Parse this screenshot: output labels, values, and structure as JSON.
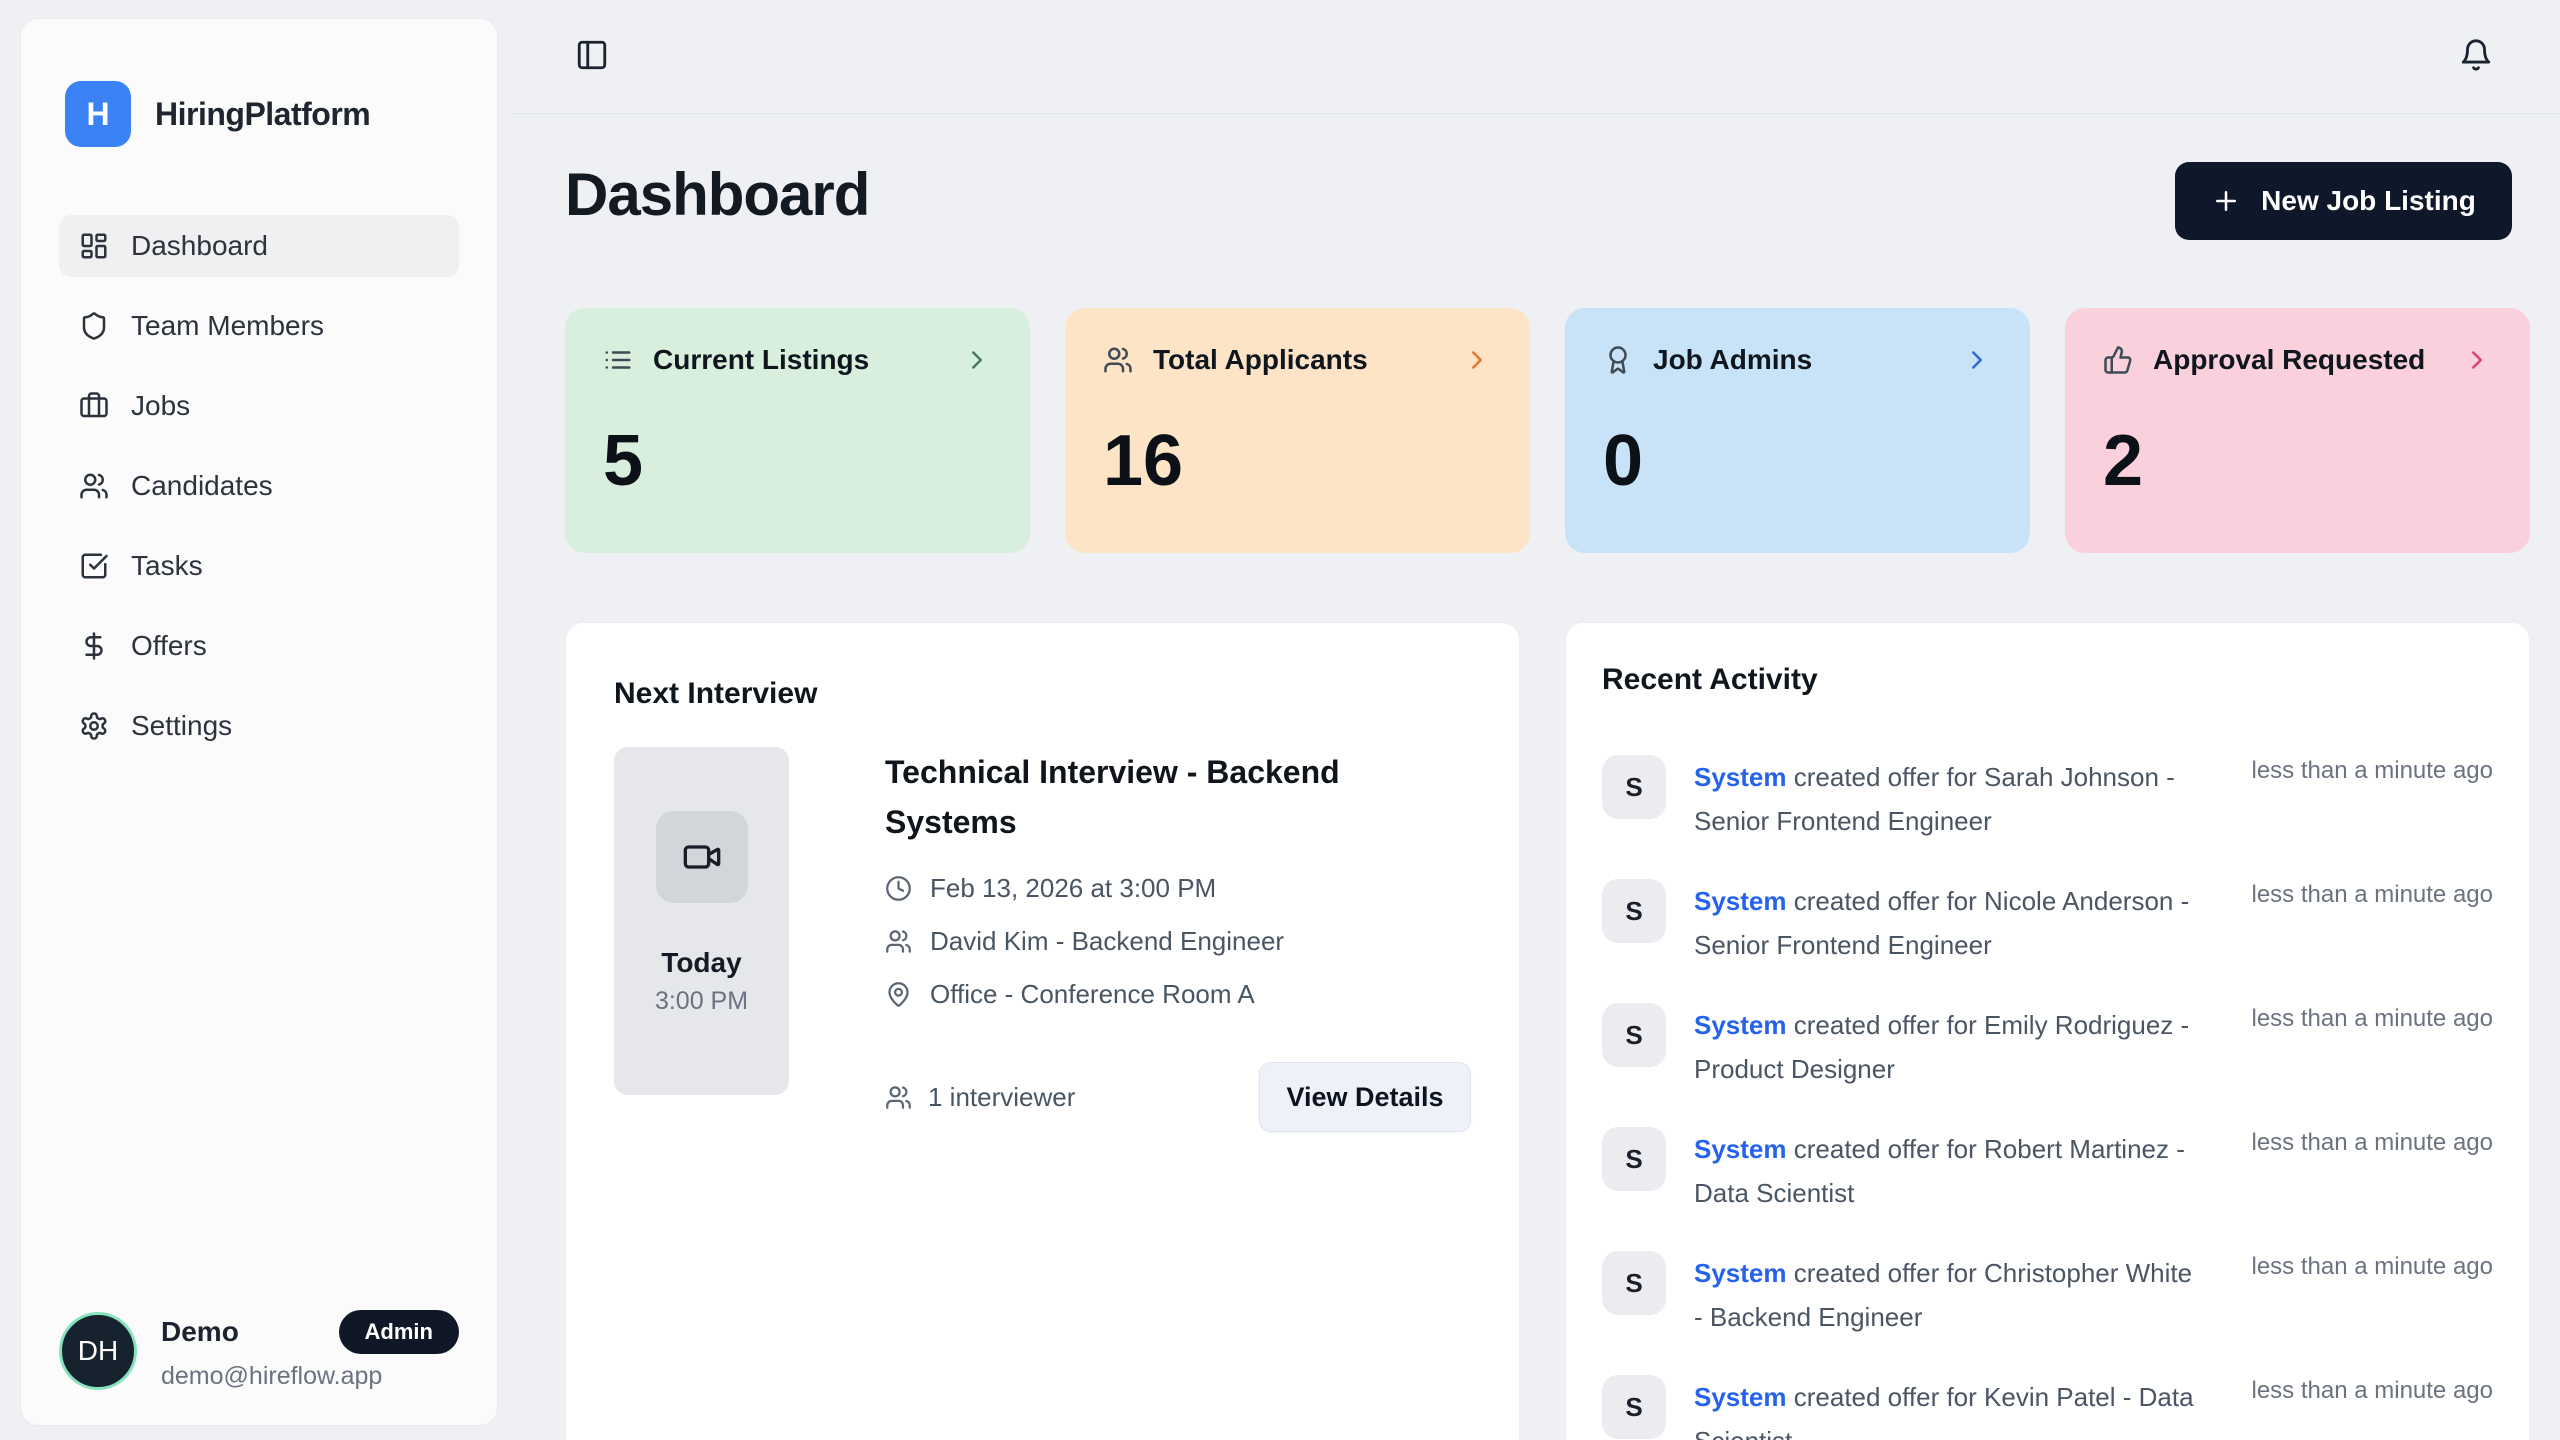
{
  "brand": {
    "name": "HiringPlatform",
    "logo_letter": "H",
    "logo_color": "#3b82f6"
  },
  "sidebar": {
    "items": [
      {
        "label": "Dashboard",
        "icon": "dashboard-icon",
        "active": true
      },
      {
        "label": "Team Members",
        "icon": "shield-icon",
        "active": false
      },
      {
        "label": "Jobs",
        "icon": "briefcase-icon",
        "active": false
      },
      {
        "label": "Candidates",
        "icon": "users-icon",
        "active": false
      },
      {
        "label": "Tasks",
        "icon": "tasks-icon",
        "active": false
      },
      {
        "label": "Offers",
        "icon": "dollar-icon",
        "active": false
      },
      {
        "label": "Settings",
        "icon": "settings-icon",
        "active": false
      }
    ],
    "user": {
      "initials": "DH",
      "name": "Demo",
      "role_badge": "Admin",
      "email": "demo@hireflow.app"
    }
  },
  "page": {
    "title": "Dashboard",
    "new_job_button": "New Job Listing"
  },
  "stats": [
    {
      "label": "Current Listings",
      "value": "5",
      "icon": "list-icon",
      "bg": "#d8efdd",
      "chevron_color": "#49795c"
    },
    {
      "label": "Total Applicants",
      "value": "16",
      "icon": "users-icon",
      "bg": "#fde4c6",
      "chevron_color": "#e5772f"
    },
    {
      "label": "Job Admins",
      "value": "0",
      "icon": "award-icon",
      "bg": "#c8e3f8",
      "chevron_color": "#3069d8"
    },
    {
      "label": "Approval Requested",
      "value": "2",
      "icon": "thumbs-up-icon",
      "bg": "#f9d0dc",
      "chevron_color": "#dc4379"
    }
  ],
  "next_interview": {
    "section_title": "Next Interview",
    "day_label": "Today",
    "time_label": "3:00 PM",
    "title": "Technical Interview - Backend Systems",
    "details": [
      {
        "icon": "clock-icon",
        "text": "Feb 13, 2026 at 3:00 PM"
      },
      {
        "icon": "users-icon",
        "text": "David Kim - Backend Engineer"
      },
      {
        "icon": "map-pin-icon",
        "text": "Office - Conference Room A"
      }
    ],
    "interviewer_count": "1 interviewer",
    "view_details_button": "View Details"
  },
  "recent_activity": {
    "section_title": "Recent Activity",
    "items": [
      {
        "avatar": "S",
        "actor": "System",
        "text": "created offer for Sarah Johnson - Senior Frontend Engineer",
        "time": "less than a minute ago"
      },
      {
        "avatar": "S",
        "actor": "System",
        "text": "created offer for Nicole Anderson - Senior Frontend Engineer",
        "time": "less than a minute ago"
      },
      {
        "avatar": "S",
        "actor": "System",
        "text": "created offer for Emily Rodriguez - Product Designer",
        "time": "less than a minute ago"
      },
      {
        "avatar": "S",
        "actor": "System",
        "text": "created offer for Robert Martinez - Data Scientist",
        "time": "less than a minute ago"
      },
      {
        "avatar": "S",
        "actor": "System",
        "text": "created offer for Christopher White - Backend Engineer",
        "time": "less than a minute ago"
      },
      {
        "avatar": "S",
        "actor": "System",
        "text": "created offer for Kevin Patel - Data Scientist",
        "time": "less than a minute ago"
      }
    ]
  },
  "colors": {
    "background": "#eef0f3",
    "accent_link": "#2563eb",
    "primary_button": "#0f172a"
  }
}
